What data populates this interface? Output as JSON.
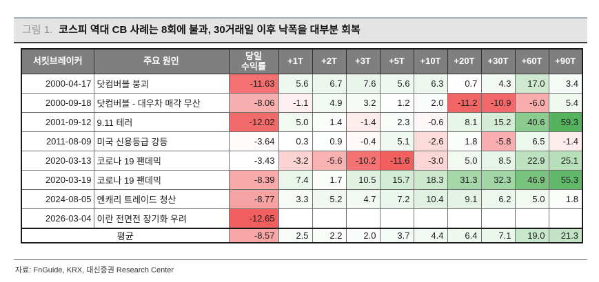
{
  "figure": {
    "label": "그림 1.",
    "title": "코스피 역대 CB 사례는 8회에 불과, 30거래일 이후 낙폭을 대부분 회복"
  },
  "source": "자료: FnGuide, KRX, 대신증권 Research Center",
  "colors": {
    "header_bg": "#7f7f7f",
    "header_text": "#ffffff",
    "negative_max": "#f25f5f",
    "positive_max": "#56b35d",
    "title_bar_bg": "#e4e4e4",
    "title_accent_border": "#9fb2bf"
  },
  "chart_data": {
    "type": "table",
    "title": "코스피 역대 CB 사례는 8회에 불과, 30거래일 이후 낙폭을 대부분 회복",
    "columns": [
      "서킷브레이커",
      "주요 원인",
      "당일\n수익률",
      "+1T",
      "+2T",
      "+3T",
      "+5T",
      "+10T",
      "+20T",
      "+30T",
      "+60T",
      "+90T"
    ],
    "rows": [
      {
        "date": "2000-04-17",
        "cause": "닷컴버블 붕괴",
        "day_return": "-11.63",
        "t_returns": [
          "5.6",
          "6.7",
          "7.6",
          "5.6",
          "6.3",
          "0.7",
          "4.3",
          "17.0",
          "3.4"
        ]
      },
      {
        "date": "2000-09-18",
        "cause": "닷컴버블 - 대우차 매각 무산",
        "day_return": "-8.06",
        "t_returns": [
          "-1.1",
          "4.9",
          "3.2",
          "1.2",
          "2.0",
          "-11.2",
          "-10.9",
          "-6.0",
          "5.4"
        ]
      },
      {
        "date": "2001-09-12",
        "cause": "9.11 테러",
        "day_return": "-12.02",
        "t_returns": [
          "5.0",
          "1.4",
          "-1.4",
          "2.3",
          "-0.6",
          "8.1",
          "15.2",
          "40.6",
          "59.3"
        ]
      },
      {
        "date": "2011-08-09",
        "cause": "미국 신용등급 강등",
        "day_return": "-3.64",
        "t_returns": [
          "0.3",
          "0.9",
          "-0.4",
          "5.1",
          "-2.6",
          "1.8",
          "-5.8",
          "6.5",
          "-1.4"
        ]
      },
      {
        "date": "2020-03-13",
        "cause": "코로나 19 팬데믹",
        "day_return": "-3.43",
        "t_returns": [
          "-3.2",
          "-5.6",
          "-10.2",
          "-11.6",
          "-3.0",
          "5.0",
          "8.5",
          "22.9",
          "25.1"
        ]
      },
      {
        "date": "2020-03-19",
        "cause": "코로나 19 팬데믹",
        "day_return": "-8.39",
        "t_returns": [
          "7.4",
          "1.7",
          "10.5",
          "15.7",
          "18.3",
          "31.3",
          "32.3",
          "46.9",
          "55.3"
        ]
      },
      {
        "date": "2024-08-05",
        "cause": "엔캐리 트레이드 청산",
        "day_return": "-8.77",
        "t_returns": [
          "3.3",
          "5.2",
          "4.7",
          "7.2",
          "10.4",
          "9.1",
          "6.2",
          "5.0",
          "1.8"
        ]
      },
      {
        "date": "2026-03-04",
        "cause": "이란 전면전 장기화 우려",
        "day_return": "-12.65",
        "t_returns": [
          "",
          "",
          "",
          "",
          "",
          "",
          "",
          "",
          ""
        ]
      }
    ],
    "average": {
      "label": "평균",
      "day_return": "-8.57",
      "t_returns": [
        "2.5",
        "2.2",
        "2.0",
        "3.7",
        "4.4",
        "6.4",
        "7.1",
        "19.0",
        "21.3"
      ]
    },
    "color_scale": {
      "day_column_white_at": -3.43,
      "day_column_red_at": -12.65,
      "t_red_at": -11.6,
      "t_green_at": 59.3
    }
  }
}
